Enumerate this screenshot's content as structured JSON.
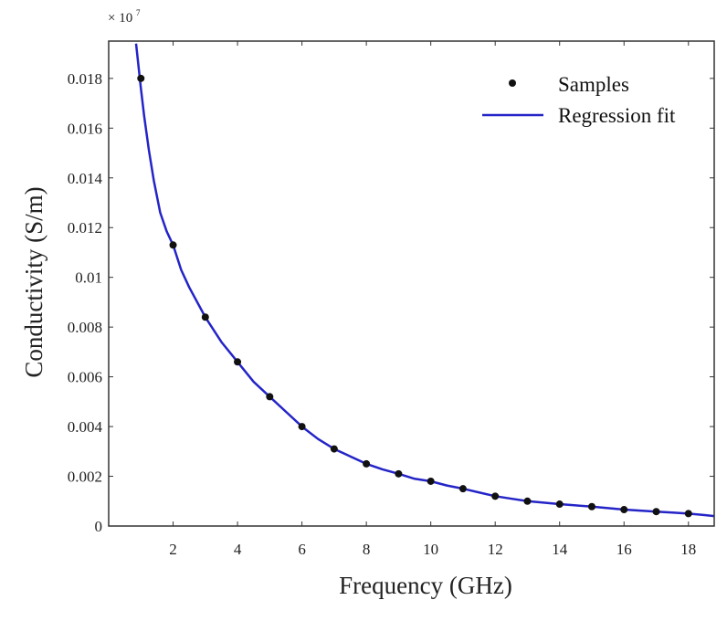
{
  "chart_data": {
    "type": "scatter",
    "title": "",
    "xlabel": "Frequency (GHz)",
    "ylabel": "Conductivity (S/m)",
    "y_multiplier": {
      "base": "× 10",
      "exponent": "7"
    },
    "xlim": [
      0.0,
      18.8
    ],
    "ylim": [
      0,
      0.0195
    ],
    "x_ticks": [
      2,
      4,
      6,
      8,
      10,
      12,
      14,
      16,
      18
    ],
    "x_tick_labels": [
      "2",
      "4",
      "6",
      "8",
      "10",
      "12",
      "14",
      "16",
      "18"
    ],
    "y_ticks": [
      0,
      0.002,
      0.004,
      0.006,
      0.008,
      0.01,
      0.012,
      0.014,
      0.016,
      0.018
    ],
    "y_tick_labels": [
      "0",
      "0.002",
      "0.004",
      "0.006",
      "0.008",
      "0.01",
      "0.012",
      "0.014",
      "0.016",
      "0.018"
    ],
    "grid": false,
    "legend_position": "top-right",
    "series": [
      {
        "name": "Samples",
        "kind": "scatter",
        "color": "#111111",
        "x": [
          1,
          2,
          3,
          4,
          5,
          6,
          7,
          8,
          9,
          10,
          11,
          12,
          13,
          14,
          15,
          16,
          17,
          18
        ],
        "y": [
          0.018,
          0.0113,
          0.0084,
          0.0066,
          0.0052,
          0.004,
          0.0031,
          0.0025,
          0.0021,
          0.0018,
          0.0015,
          0.0012,
          0.001,
          0.00088,
          0.00078,
          0.00066,
          0.00058,
          0.0005
        ]
      },
      {
        "name": "Regression fit",
        "kind": "line",
        "color": "#2424c8",
        "x": [
          0.85,
          0.9,
          1,
          1.1,
          1.25,
          1.4,
          1.6,
          1.8,
          2,
          2.25,
          2.5,
          3,
          3.5,
          4,
          4.5,
          5,
          5.5,
          6,
          6.5,
          7,
          7.5,
          8,
          8.5,
          9,
          9.5,
          10,
          10.5,
          11,
          11.5,
          12,
          12.5,
          13,
          13.5,
          14,
          14.5,
          15,
          15.5,
          16,
          16.5,
          17,
          17.5,
          18,
          18.5,
          18.8
        ],
        "y": [
          0.0194,
          0.0188,
          0.0176,
          0.0165,
          0.0151,
          0.0139,
          0.0126,
          0.01185,
          0.0113,
          0.0103,
          0.0096,
          0.0084,
          0.0074,
          0.0066,
          0.0058,
          0.0052,
          0.0046,
          0.004,
          0.0035,
          0.0031,
          0.0028,
          0.0025,
          0.00228,
          0.0021,
          0.0019,
          0.0018,
          0.00163,
          0.0015,
          0.00135,
          0.0012,
          0.0011,
          0.001,
          0.00094,
          0.00088,
          0.00083,
          0.00078,
          0.00072,
          0.00066,
          0.00062,
          0.00058,
          0.00054,
          0.0005,
          0.00044,
          0.0004
        ]
      }
    ]
  }
}
